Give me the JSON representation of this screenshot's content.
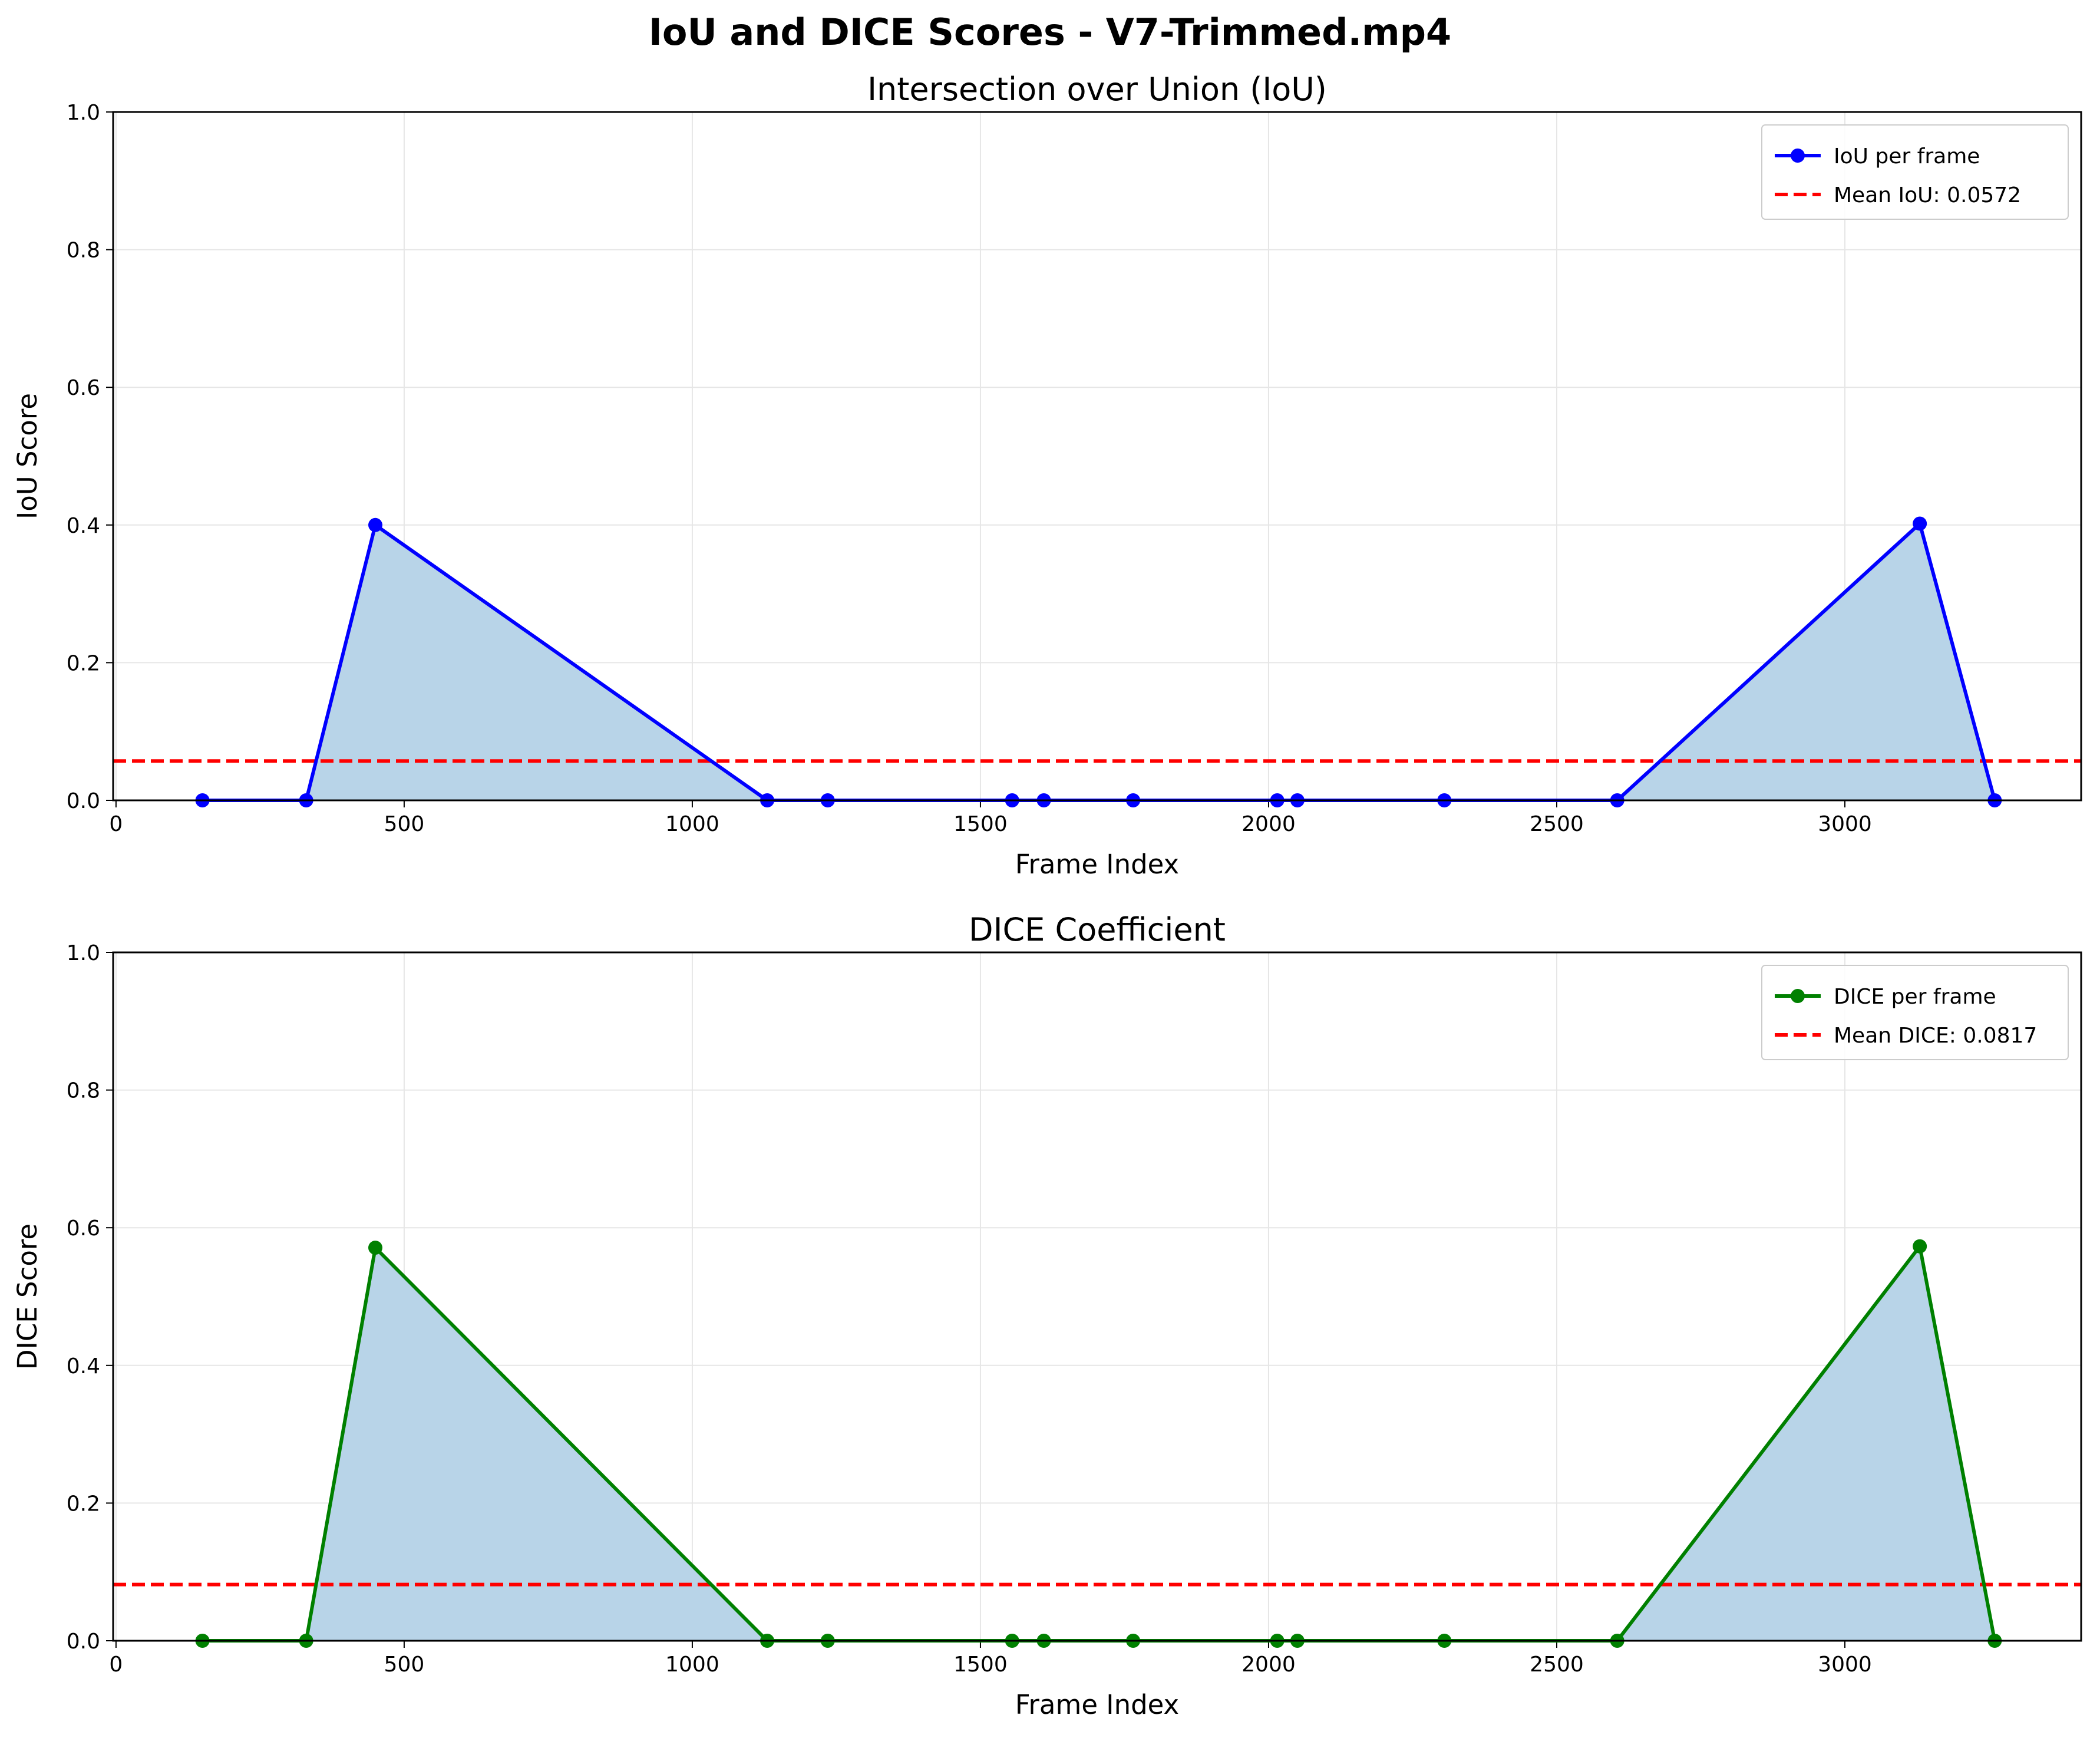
{
  "figure": {
    "suptitle": "IoU and DICE Scores - V7-Trimmed.mp4"
  },
  "chart_data": [
    {
      "type": "line",
      "title": "Intersection over Union (IoU)",
      "xlabel": "Frame Index",
      "ylabel": "IoU Score",
      "xlim": [
        -5,
        3410
      ],
      "ylim": [
        0,
        1.0
      ],
      "xticks": [
        "0",
        "500",
        "1000",
        "1500",
        "2000",
        "2500",
        "3000"
      ],
      "yticks": [
        "0.0",
        "0.2",
        "0.4",
        "0.6",
        "0.8",
        "1.0"
      ],
      "grid": true,
      "legend_position": "upper-right",
      "fill_under_curve": true,
      "fill_color": "#b8d4e8",
      "series": [
        {
          "name": "IoU per frame",
          "color": "#0000ff",
          "marker": "circle",
          "x": [
            150,
            330,
            450,
            1130,
            1235,
            1555,
            1610,
            1765,
            2015,
            2050,
            2305,
            2605,
            3130,
            3260
          ],
          "y": [
            0,
            0,
            0.4,
            0,
            0,
            0,
            0,
            0,
            0,
            0,
            0,
            0,
            0.402,
            0
          ]
        }
      ],
      "mean_line": {
        "label": "Mean IoU: 0.0572",
        "value": 0.0572,
        "color": "#ff0000",
        "style": "dashed"
      }
    },
    {
      "type": "line",
      "title": "DICE Coefficient",
      "xlabel": "Frame Index",
      "ylabel": "DICE Score",
      "xlim": [
        -5,
        3410
      ],
      "ylim": [
        0,
        1.0
      ],
      "xticks": [
        "0",
        "500",
        "1000",
        "1500",
        "2000",
        "2500",
        "3000"
      ],
      "yticks": [
        "0.0",
        "0.2",
        "0.4",
        "0.6",
        "0.8",
        "1.0"
      ],
      "grid": true,
      "legend_position": "upper-right",
      "fill_under_curve": true,
      "fill_color": "#b8d4e8",
      "series": [
        {
          "name": "DICE per frame",
          "color": "#008000",
          "marker": "circle",
          "x": [
            150,
            330,
            450,
            1130,
            1235,
            1555,
            1610,
            1765,
            2015,
            2050,
            2305,
            2605,
            3130,
            3260
          ],
          "y": [
            0,
            0,
            0.571,
            0,
            0,
            0,
            0,
            0,
            0,
            0,
            0,
            0,
            0.573,
            0
          ]
        }
      ],
      "mean_line": {
        "label": "Mean DICE: 0.0817",
        "value": 0.0817,
        "color": "#ff0000",
        "style": "dashed"
      }
    }
  ]
}
